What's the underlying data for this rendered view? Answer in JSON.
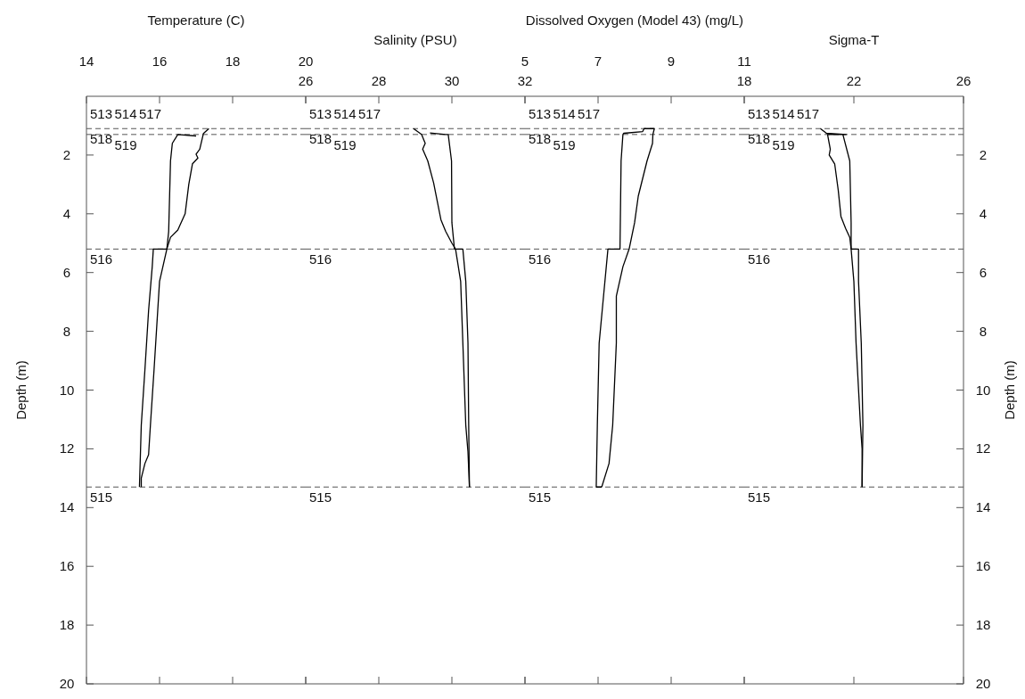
{
  "chart_data": [
    {
      "type": "line",
      "xlabel": "Temperature (C)",
      "ylabel": "Depth (m)",
      "xlim": [
        14,
        20
      ],
      "xticks": [
        14,
        16,
        18,
        20
      ],
      "ylim": [
        20,
        0
      ],
      "yticks": [
        2,
        4,
        6,
        8,
        10,
        12,
        14,
        16,
        18,
        20
      ],
      "series": [
        {
          "color": "#000000",
          "x": [
            17.35,
            17.2,
            17.1,
            17.0,
            17.05,
            16.9,
            16.8,
            16.7,
            16.5,
            16.3,
            16.2,
            16.0,
            15.95,
            15.85,
            15.75,
            15.7,
            15.6,
            15.5,
            15.5
          ],
          "values": [
            1.1,
            1.27,
            1.8,
            1.97,
            2.1,
            2.3,
            3.0,
            4.0,
            4.55,
            4.8,
            5.2,
            6.3,
            7.3,
            9.3,
            11.2,
            12.2,
            12.5,
            13.0,
            13.3
          ]
        },
        {
          "color": "#000000",
          "x": [
            15.45,
            15.5,
            15.6,
            15.7,
            15.8,
            15.83,
            16.2,
            16.25,
            16.3,
            16.35,
            16.5,
            17.0
          ],
          "values": [
            13.3,
            11.2,
            9.3,
            7.3,
            5.8,
            5.2,
            5.2,
            4.6,
            2.2,
            1.6,
            1.3,
            1.35
          ]
        }
      ],
      "ref_lines": [
        {
          "axis": "y",
          "value": 1.1,
          "color": "#555555",
          "line_style": "dashed"
        },
        {
          "axis": "y",
          "value": 1.3,
          "color": "#555555",
          "line_style": "dashed"
        },
        {
          "axis": "y",
          "value": 5.2,
          "color": "#555555",
          "line_style": "dashed"
        },
        {
          "axis": "y",
          "value": 13.3,
          "color": "#555555",
          "line_style": "dashed"
        }
      ],
      "annotations": [
        "513",
        "514",
        "517",
        "518",
        "519",
        "516",
        "515"
      ]
    },
    {
      "type": "line",
      "xlabel": "Salinity (PSU)",
      "xlim": [
        26,
        32
      ],
      "xticks": [
        26,
        28,
        30,
        32
      ],
      "ylim": [
        20,
        0
      ],
      "yticks": [
        2,
        4,
        6,
        8,
        10,
        12,
        14,
        16,
        18,
        20
      ],
      "tick_labels": "x",
      "series": [
        {
          "color": "#000000",
          "x": [
            28.95,
            29.17,
            29.27,
            29.2,
            29.34,
            29.5,
            29.7,
            29.83,
            30.0,
            30.1,
            30.24,
            30.3,
            30.38,
            30.44,
            30.48
          ],
          "values": [
            1.1,
            1.3,
            1.6,
            1.8,
            2.2,
            2.95,
            4.2,
            4.6,
            5.0,
            5.2,
            6.3,
            8.4,
            11.2,
            12.1,
            13.3
          ]
        },
        {
          "color": "#000000",
          "x": [
            30.48,
            30.46,
            30.44,
            30.38,
            30.3,
            30.07,
            30.0,
            29.99,
            29.9,
            29.83,
            29.4
          ],
          "values": [
            13.3,
            11.2,
            8.4,
            6.3,
            5.2,
            5.2,
            4.3,
            2.2,
            1.3,
            1.3,
            1.25
          ]
        }
      ],
      "ref_lines": [
        {
          "axis": "y",
          "value": 1.1,
          "color": "#555555",
          "line_style": "dashed"
        },
        {
          "axis": "y",
          "value": 1.3,
          "color": "#555555",
          "line_style": "dashed"
        },
        {
          "axis": "y",
          "value": 5.2,
          "color": "#555555",
          "line_style": "dashed"
        },
        {
          "axis": "y",
          "value": 13.3,
          "color": "#555555",
          "line_style": "dashed"
        }
      ],
      "annotations": [
        "513",
        "514",
        "517",
        "518",
        "519",
        "516",
        "515"
      ]
    },
    {
      "type": "line",
      "xlabel": "Dissolved Oxygen (Model 43) (mg/L)",
      "xlim": [
        5,
        11
      ],
      "xticks": [
        5,
        7,
        9,
        11
      ],
      "ylim": [
        20,
        0
      ],
      "yticks": [
        2,
        4,
        6,
        8,
        10,
        12,
        14,
        16,
        18,
        20
      ],
      "tick_labels": "x",
      "series": [
        {
          "color": "#000000",
          "x": [
            8.54,
            8.26,
            8.22,
            7.7,
            7.68,
            7.63,
            7.6,
            7.27,
            7.15,
            7.03,
            6.98,
            6.95,
            7.1
          ],
          "values": [
            1.1,
            1.1,
            1.2,
            1.26,
            1.3,
            2.2,
            5.2,
            5.2,
            6.8,
            8.4,
            11.2,
            13.3,
            13.3
          ]
        },
        {
          "color": "#000000",
          "x": [
            7.1,
            7.3,
            7.4,
            7.5,
            7.5,
            7.68,
            7.85,
            8.0,
            8.1,
            8.34,
            8.49,
            8.5,
            8.54
          ],
          "values": [
            13.3,
            12.5,
            11.2,
            8.4,
            6.8,
            5.8,
            5.2,
            4.3,
            3.4,
            2.2,
            1.6,
            1.3,
            1.1
          ]
        }
      ],
      "ref_lines": [
        {
          "axis": "y",
          "value": 1.1,
          "color": "#555555",
          "line_style": "dashed"
        },
        {
          "axis": "y",
          "value": 1.3,
          "color": "#555555",
          "line_style": "dashed"
        },
        {
          "axis": "y",
          "value": 5.2,
          "color": "#555555",
          "line_style": "dashed"
        },
        {
          "axis": "y",
          "value": 13.3,
          "color": "#555555",
          "line_style": "dashed"
        }
      ],
      "annotations": [
        "513",
        "514",
        "517",
        "518",
        "519",
        "516",
        "515"
      ]
    },
    {
      "type": "line",
      "xlabel": "Sigma-T",
      "y2label": "Depth (m)",
      "xlim": [
        18,
        26
      ],
      "xticks": [
        18,
        22,
        26
      ],
      "y2lim": [
        20,
        0
      ],
      "y2ticks": [
        2,
        4,
        6,
        8,
        10,
        12,
        14,
        16,
        18,
        20
      ],
      "series": [
        {
          "color": "#000000",
          "axis": "y2",
          "x": [
            20.78,
            21.0,
            21.72,
            21.04,
            21.14,
            21.1,
            21.3,
            21.43,
            21.53,
            21.7,
            21.85,
            21.9,
            22.0,
            22.08,
            22.24,
            22.3,
            22.3
          ],
          "values": [
            1.1,
            1.26,
            1.3,
            1.3,
            1.8,
            2.0,
            2.3,
            3.2,
            4.1,
            4.5,
            4.8,
            5.2,
            6.3,
            8.4,
            11.2,
            12.0,
            13.3
          ]
        },
        {
          "color": "#000000",
          "axis": "y2",
          "x": [
            22.3,
            22.33,
            22.27,
            22.17,
            22.17,
            21.9,
            21.9,
            21.85,
            21.6
          ],
          "values": [
            13.3,
            11.2,
            8.4,
            6.3,
            5.2,
            5.2,
            4.3,
            2.2,
            1.3
          ]
        }
      ],
      "ref_lines": [
        {
          "axis": "y2",
          "value": 1.1,
          "color": "#555555",
          "line_style": "dashed"
        },
        {
          "axis": "y2",
          "value": 1.3,
          "color": "#555555",
          "line_style": "dashed"
        },
        {
          "axis": "y2",
          "value": 5.2,
          "color": "#555555",
          "line_style": "dashed"
        },
        {
          "axis": "y2",
          "value": 13.3,
          "color": "#555555",
          "line_style": "dashed"
        }
      ],
      "annotations": [
        "513",
        "514",
        "517",
        "518",
        "519",
        "516",
        "515"
      ]
    }
  ]
}
